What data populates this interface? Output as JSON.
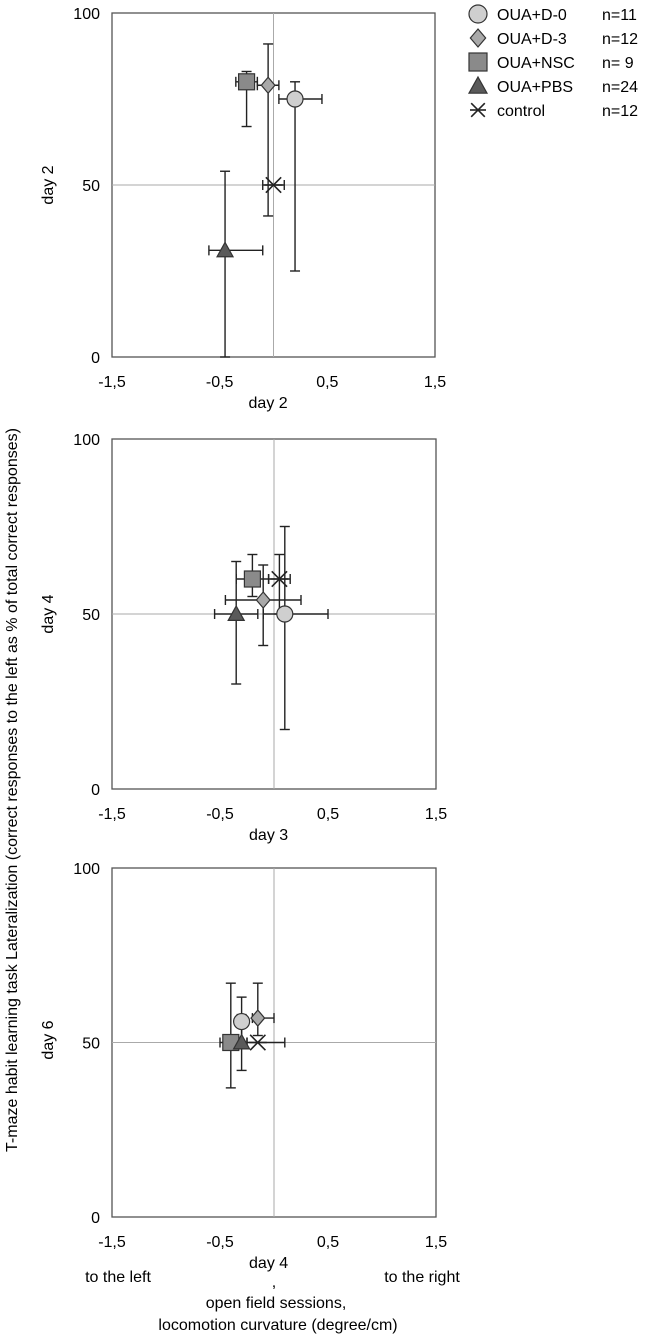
{
  "figure": {
    "y_axis_label": "T-maze habit learning task Lateralization (correct responses to the left as % of total correct responses)",
    "x_footer": {
      "left_note": "to the left",
      "right_note": "to the right",
      "comma": ",",
      "line1": "open field sessions,",
      "line2": "locomotion curvature (degree/cm)"
    }
  },
  "legend": [
    {
      "group": "OUA+D-0",
      "n": "n=11",
      "marker": "circle",
      "fill": "#cfcfcf"
    },
    {
      "group": "OUA+D-3",
      "n": "n=12",
      "marker": "diamond",
      "fill": "#a9a9a9"
    },
    {
      "group": "OUA+NSC",
      "n": "n= 9",
      "marker": "square",
      "fill": "#8a8a8a"
    },
    {
      "group": "OUA+PBS",
      "n": "n=24",
      "marker": "triangle",
      "fill": "#5a5a5a"
    },
    {
      "group": "control",
      "n": "n=12",
      "marker": "asterisk",
      "fill": "#222222"
    }
  ],
  "chart_data": [
    {
      "type": "scatter",
      "ylabel": "day 2",
      "xlabel": "day 2",
      "xlim": [
        -1.5,
        1.5
      ],
      "ylim": [
        0,
        100
      ],
      "xticks": [
        "-1,5",
        "-0,5",
        "0,5",
        "1,5"
      ],
      "yticks": [
        "0",
        "50",
        "100"
      ],
      "reference_lines": {
        "x": 0,
        "y": 50
      },
      "series": [
        {
          "name": "OUA+D-0",
          "x": 0.2,
          "y": 75,
          "x_err": [
            0.15,
            0.25
          ],
          "y_err": [
            50,
            5
          ]
        },
        {
          "name": "OUA+D-3",
          "x": -0.05,
          "y": 79,
          "x_err": [
            0.1,
            0.1
          ],
          "y_err": [
            38,
            12
          ]
        },
        {
          "name": "OUA+NSC",
          "x": -0.25,
          "y": 80,
          "x_err": [
            0.1,
            0.1
          ],
          "y_err": [
            13,
            3
          ]
        },
        {
          "name": "OUA+PBS",
          "x": -0.45,
          "y": 31,
          "x_err": [
            0.15,
            0.35
          ],
          "y_err": [
            31,
            23
          ]
        },
        {
          "name": "control",
          "x": 0,
          "y": 50,
          "x_err": [
            0.1,
            0.1
          ],
          "y_err": [
            0,
            0
          ]
        }
      ]
    },
    {
      "type": "scatter",
      "ylabel": "day 4",
      "xlabel": "day 3",
      "xlim": [
        -1.5,
        1.5
      ],
      "ylim": [
        0,
        100
      ],
      "xticks": [
        "-1,5",
        "-0,5",
        "0,5",
        "1,5"
      ],
      "yticks": [
        "0",
        "50",
        "100"
      ],
      "reference_lines": {
        "x": 0,
        "y": 50
      },
      "series": [
        {
          "name": "OUA+D-0",
          "x": 0.1,
          "y": 50,
          "x_err": [
            0.2,
            0.4
          ],
          "y_err": [
            33,
            25
          ]
        },
        {
          "name": "OUA+D-3",
          "x": -0.1,
          "y": 54,
          "x_err": [
            0.35,
            0.35
          ],
          "y_err": [
            13,
            10
          ]
        },
        {
          "name": "OUA+NSC",
          "x": -0.2,
          "y": 60,
          "x_err": [
            0.15,
            0.15
          ],
          "y_err": [
            5,
            7
          ]
        },
        {
          "name": "OUA+PBS",
          "x": -0.35,
          "y": 50,
          "x_err": [
            0.2,
            0.2
          ],
          "y_err": [
            20,
            15
          ]
        },
        {
          "name": "control",
          "x": 0.05,
          "y": 60,
          "x_err": [
            0.1,
            0.1
          ],
          "y_err": [
            10,
            7
          ]
        }
      ]
    },
    {
      "type": "scatter",
      "ylabel": "day 6",
      "xlabel": "day 4",
      "xlim": [
        -1.5,
        1.5
      ],
      "ylim": [
        0,
        100
      ],
      "xticks": [
        "-1,5",
        "-0,5",
        "0,5",
        "1,5"
      ],
      "yticks": [
        "0",
        "50",
        "100"
      ],
      "reference_lines": {
        "x": 0,
        "y": 50
      },
      "series": [
        {
          "name": "OUA+D-0",
          "x": -0.3,
          "y": 56,
          "x_err": [
            0.05,
            0.05
          ],
          "y_err": [
            7,
            7
          ]
        },
        {
          "name": "OUA+D-3",
          "x": -0.15,
          "y": 57,
          "x_err": [
            0.05,
            0.15
          ],
          "y_err": [
            5,
            10
          ]
        },
        {
          "name": "OUA+NSC",
          "x": -0.4,
          "y": 50,
          "x_err": [
            0.1,
            0.1
          ],
          "y_err": [
            13,
            17
          ]
        },
        {
          "name": "OUA+PBS",
          "x": -0.3,
          "y": 50,
          "x_err": [
            0.05,
            0.05
          ],
          "y_err": [
            8,
            8
          ]
        },
        {
          "name": "control",
          "x": -0.15,
          "y": 50,
          "x_err": [
            0.1,
            0.25
          ],
          "y_err": [
            0,
            0
          ]
        }
      ]
    }
  ]
}
